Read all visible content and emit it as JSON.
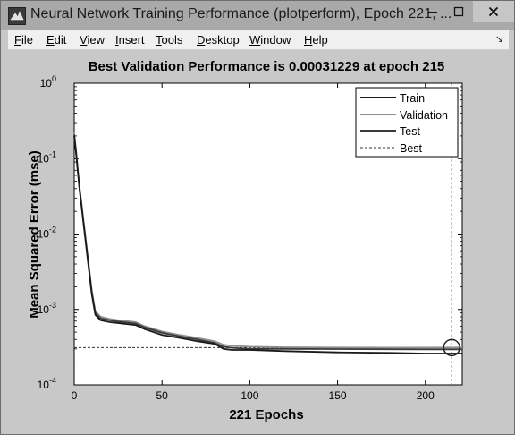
{
  "window": {
    "title": "Neural Network Training Performance (plotperform), Epoch 221, ...",
    "app_icon": "matlab-icon",
    "minimize_icon": "minimize-icon",
    "maximize_icon": "maximize-icon",
    "close_icon": "close-icon"
  },
  "menu": {
    "items": [
      {
        "first": "F",
        "rest": "ile"
      },
      {
        "first": "E",
        "rest": "dit"
      },
      {
        "first": "V",
        "rest": "iew"
      },
      {
        "first": "I",
        "rest": "nsert"
      },
      {
        "first": "T",
        "rest": "ools"
      },
      {
        "first": "D",
        "rest": "esktop"
      },
      {
        "first": "W",
        "rest": "indow"
      },
      {
        "first": "H",
        "rest": "elp"
      }
    ],
    "dock_icon": "dock-arrow-icon"
  },
  "chart_data": {
    "type": "line",
    "title": "Best Validation Performance is 0.00031229 at epoch 215",
    "xlabel": "221 Epochs",
    "ylabel": "Mean Squared Error  (mse)",
    "xlim": [
      0,
      221
    ],
    "ylim": [
      0.0001,
      1
    ],
    "y_scale": "log",
    "x_ticks": [
      0,
      50,
      100,
      150,
      200
    ],
    "x_tick_labels": [
      "0",
      "50",
      "100",
      "150",
      "200"
    ],
    "y_ticks": [
      {
        "base": "10",
        "exp": "0"
      },
      {
        "base": "10",
        "exp": "-1"
      },
      {
        "base": "10",
        "exp": "-2"
      },
      {
        "base": "10",
        "exp": "-3"
      },
      {
        "base": "10",
        "exp": "-4"
      }
    ],
    "grid": false,
    "legend_position": "top-right",
    "best": {
      "epoch": 215,
      "value": 0.00031229
    },
    "series": [
      {
        "name": "Train",
        "color": "#1a1a1a",
        "x": [
          0,
          1,
          2,
          3,
          4,
          5,
          6,
          8,
          10,
          12,
          15,
          20,
          25,
          30,
          35,
          40,
          50,
          60,
          70,
          80,
          85,
          90,
          100,
          120,
          150,
          180,
          200,
          215,
          221
        ],
        "y": [
          0.2,
          0.12,
          0.07,
          0.04,
          0.025,
          0.016,
          0.01,
          0.004,
          0.0016,
          0.00085,
          0.00072,
          0.00068,
          0.00066,
          0.00064,
          0.00062,
          0.00055,
          0.00046,
          0.00042,
          0.00038,
          0.00035,
          0.0003,
          0.00029,
          0.00029,
          0.00028,
          0.00027,
          0.000265,
          0.00026,
          0.00026,
          0.00026
        ]
      },
      {
        "name": "Validation",
        "color": "#8f8f8f",
        "x": [
          0,
          1,
          2,
          3,
          4,
          5,
          6,
          8,
          10,
          12,
          15,
          20,
          25,
          30,
          35,
          40,
          50,
          60,
          70,
          80,
          85,
          90,
          100,
          120,
          150,
          180,
          200,
          215,
          221
        ],
        "y": [
          0.22,
          0.13,
          0.075,
          0.043,
          0.027,
          0.017,
          0.011,
          0.0045,
          0.0018,
          0.00095,
          0.0008,
          0.00075,
          0.00072,
          0.0007,
          0.00068,
          0.0006,
          0.00051,
          0.00046,
          0.00042,
          0.00038,
          0.00034,
          0.00033,
          0.00032,
          0.000315,
          0.000313,
          0.000312,
          0.000312,
          0.00031229,
          0.000313
        ]
      },
      {
        "name": "Test",
        "color": "#3a3a3a",
        "x": [
          0,
          1,
          2,
          3,
          4,
          5,
          6,
          8,
          10,
          12,
          15,
          20,
          25,
          30,
          35,
          40,
          50,
          60,
          70,
          80,
          85,
          90,
          100,
          120,
          150,
          180,
          200,
          215,
          221
        ],
        "y": [
          0.21,
          0.125,
          0.072,
          0.041,
          0.026,
          0.0165,
          0.0105,
          0.0042,
          0.0017,
          0.0009,
          0.00076,
          0.00072,
          0.00069,
          0.00067,
          0.00065,
          0.00058,
          0.00049,
          0.00044,
          0.0004,
          0.00036,
          0.00032,
          0.00031,
          0.0003,
          0.0003,
          0.000298,
          0.000297,
          0.000296,
          0.000296,
          0.000296
        ]
      },
      {
        "name": "Best",
        "color": "#333333",
        "dashed": true
      }
    ]
  }
}
